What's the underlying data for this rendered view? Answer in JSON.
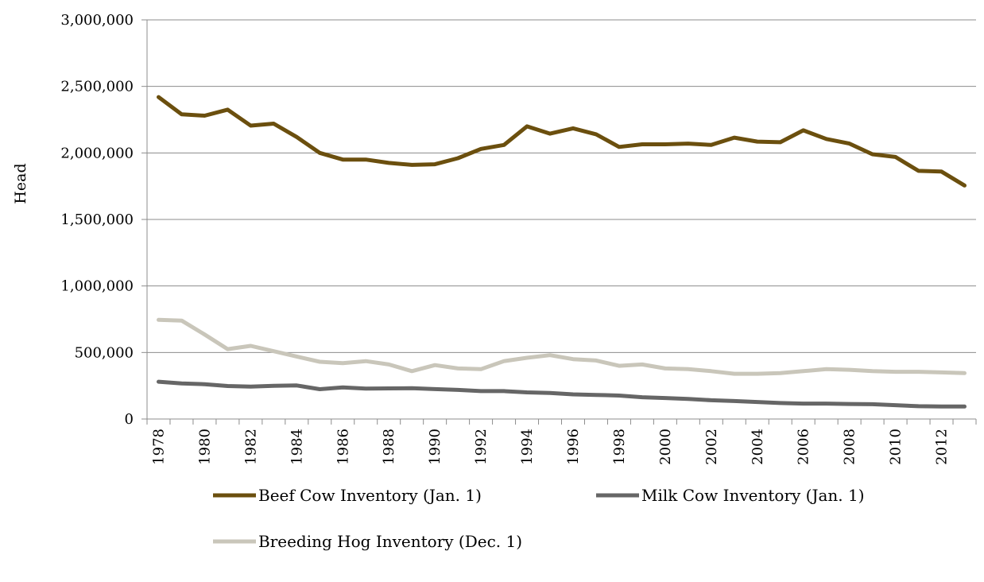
{
  "chart_data": {
    "type": "line",
    "title": "",
    "xlabel": "",
    "ylabel": "Head",
    "ylim": [
      0,
      3000000
    ],
    "yticks": [
      0,
      500000,
      1000000,
      1500000,
      2000000,
      2500000,
      3000000
    ],
    "ytick_labels": [
      "0",
      "500,000",
      "1,000,000",
      "1,500,000",
      "2,000,000",
      "2,500,000",
      "3,000,000"
    ],
    "xtick_labels": [
      "1978",
      "1980",
      "1982",
      "1984",
      "1986",
      "1988",
      "1990",
      "1992",
      "1994",
      "1996",
      "1998",
      "2000",
      "2002",
      "2004",
      "2006",
      "2008",
      "2010",
      "2012"
    ],
    "x": [
      1978,
      1979,
      1980,
      1981,
      1982,
      1983,
      1984,
      1985,
      1986,
      1987,
      1988,
      1989,
      1990,
      1991,
      1992,
      1993,
      1994,
      1995,
      1996,
      1997,
      1998,
      1999,
      2000,
      2001,
      2002,
      2003,
      2004,
      2005,
      2006,
      2007,
      2008,
      2009,
      2010,
      2011,
      2012,
      2013
    ],
    "grid": true,
    "legend_position": "bottom",
    "series": [
      {
        "name": "Beef Cow Inventory (Jan. 1)",
        "color": "#6b4f0e",
        "values": [
          2420000,
          2290000,
          2280000,
          2325000,
          2205000,
          2220000,
          2120000,
          2000000,
          1950000,
          1950000,
          1925000,
          1910000,
          1915000,
          1960000,
          2030000,
          2060000,
          2200000,
          2145000,
          2185000,
          2140000,
          2045000,
          2065000,
          2065000,
          2070000,
          2060000,
          2115000,
          2085000,
          2080000,
          2170000,
          2105000,
          2070000,
          1990000,
          1970000,
          1865000,
          1860000,
          1755000
        ]
      },
      {
        "name": "Milk Cow Inventory (Jan. 1)",
        "color": "#666666",
        "values": [
          280000,
          268000,
          262000,
          248000,
          244000,
          250000,
          252000,
          224000,
          238000,
          228000,
          230000,
          231000,
          225000,
          219000,
          210000,
          210000,
          200000,
          196000,
          185000,
          181000,
          176000,
          164000,
          158000,
          151000,
          141000,
          135000,
          128000,
          120000,
          116000,
          116000,
          113000,
          111000,
          104000,
          96000,
          94000,
          94000
        ]
      },
      {
        "name": "Breeding Hog Inventory (Dec. 1)",
        "color": "#c9c6ba",
        "values": [
          745000,
          740000,
          635000,
          525000,
          550000,
          510000,
          470000,
          430000,
          420000,
          435000,
          410000,
          360000,
          405000,
          380000,
          375000,
          435000,
          460000,
          480000,
          450000,
          440000,
          400000,
          410000,
          380000,
          375000,
          360000,
          340000,
          340000,
          345000,
          360000,
          375000,
          370000,
          360000,
          355000,
          355000,
          350000,
          345000
        ]
      }
    ]
  }
}
